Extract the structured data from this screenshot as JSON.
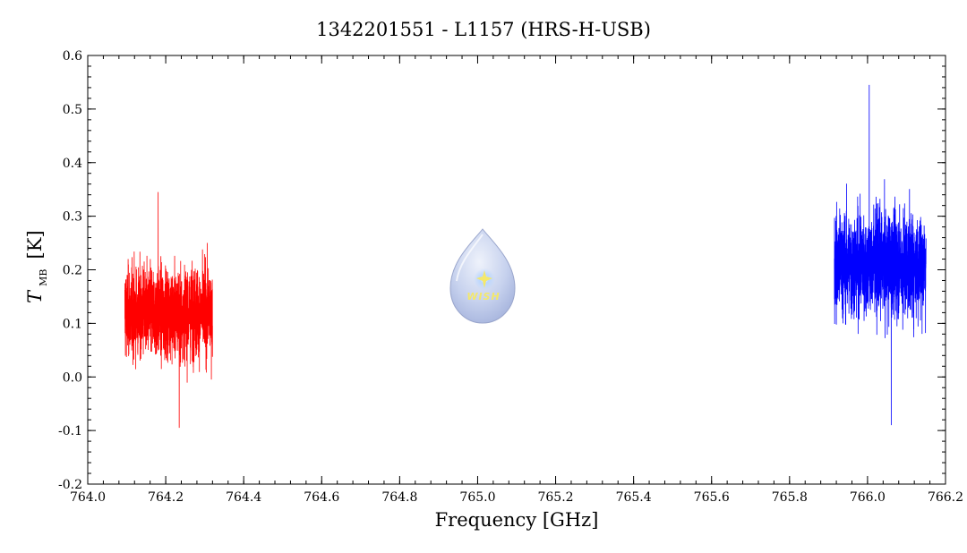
{
  "chart_data": {
    "type": "line",
    "title": "1342201551 - L1157 (HRS-H-USB)",
    "xlabel": "Frequency [GHz]",
    "ylabel_main": "T",
    "ylabel_sub": "MB",
    "ylabel_unit": "[K]",
    "xlim": [
      764.0,
      766.2
    ],
    "ylim": [
      -0.2,
      0.6
    ],
    "x_ticks": [
      "764.0",
      "764.2",
      "764.4",
      "764.6",
      "764.8",
      "765.0",
      "765.2",
      "765.4",
      "765.6",
      "765.8",
      "766.0",
      "766.2"
    ],
    "y_ticks": [
      "-0.2",
      "-0.1",
      "0.0",
      "0.1",
      "0.2",
      "0.3",
      "0.4",
      "0.5",
      "0.6"
    ],
    "grid": false,
    "series": [
      {
        "color": "#ff0000",
        "x_range": [
          764.095,
          764.32
        ],
        "mean": 0.12,
        "noise_sigma": 0.075,
        "min": -0.095,
        "max": 0.345
      },
      {
        "color": "#0000ff",
        "x_range": [
          765.915,
          766.15
        ],
        "mean": 0.21,
        "noise_sigma": 0.09,
        "min": -0.09,
        "max": 0.545
      }
    ],
    "logo": {
      "text": "WISH"
    }
  }
}
